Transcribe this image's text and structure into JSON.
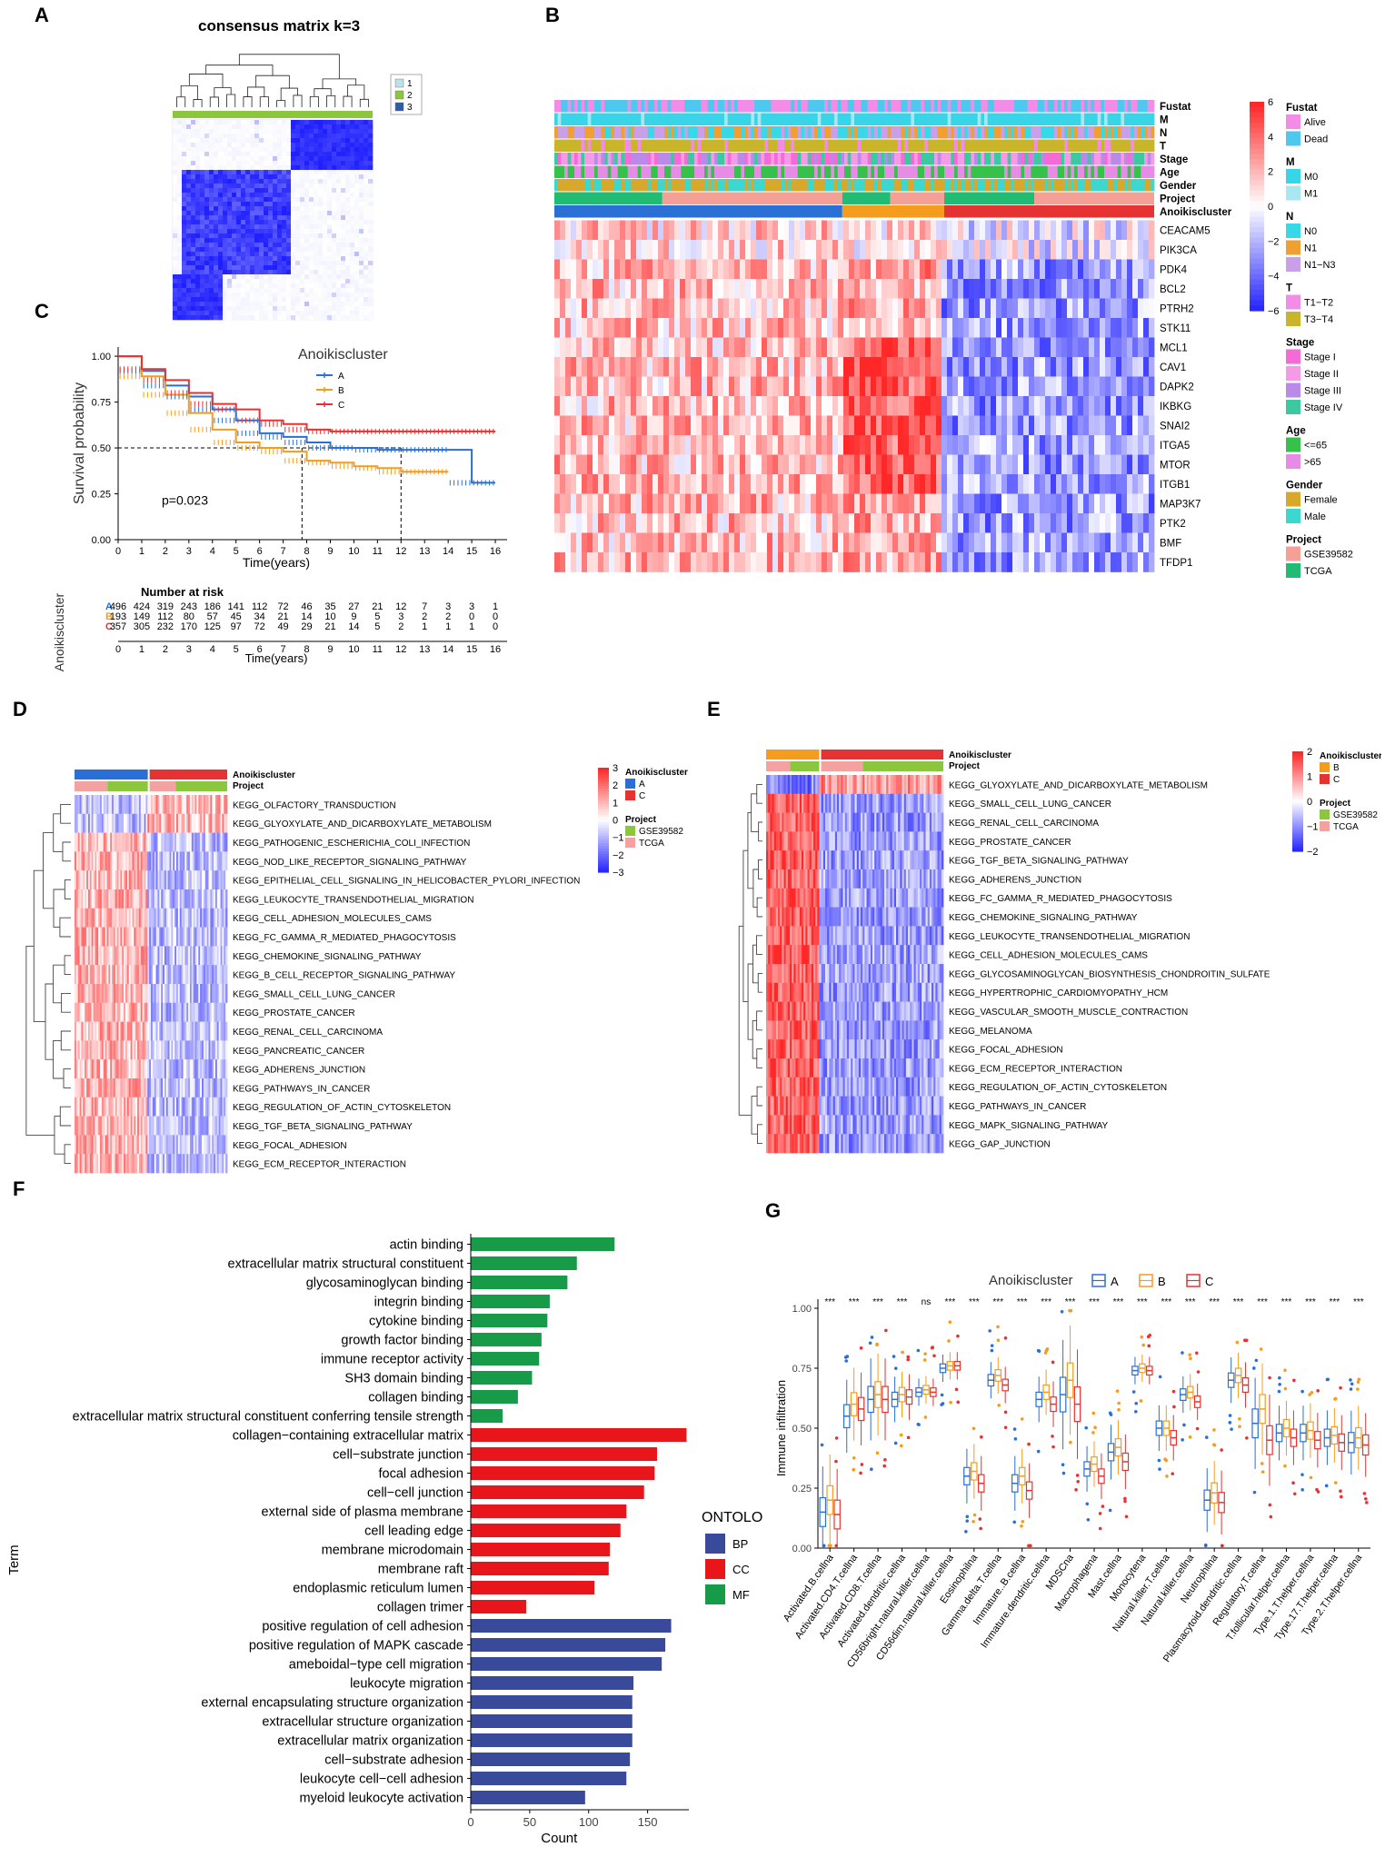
{
  "panel_labels": {
    "a": "A",
    "b": "B",
    "c": "C",
    "d": "D",
    "e": "E",
    "f": "F",
    "g": "G"
  },
  "colors": {
    "clusterA": "#2a6fd6",
    "clusterB": "#f39c1e",
    "clusterC": "#e53232",
    "heatHigh": "#e31b1b",
    "heatLow": "#2222d8",
    "heatMid": "#ffffff",
    "ontBP": "#3a4a9a",
    "ontCC": "#e8161b",
    "ontMF": "#179b48",
    "gse": "#f4a097",
    "tcga": "#22bb73",
    "green": "#8cc63e",
    "pink": "#f2a2a0"
  },
  "chart_data": [
    {
      "id": "A",
      "type": "heatmap",
      "title": "consensus matrix k=3",
      "legend": [
        "1",
        "2",
        "3"
      ],
      "legend_colors": [
        "#b9e3e8",
        "#8cc63e",
        "#2a5fb0"
      ]
    },
    {
      "id": "B",
      "type": "heatmap",
      "annotation_rows": [
        "Fustat",
        "M",
        "N",
        "T",
        "Stage",
        "Age",
        "Gender",
        "Project",
        "Anoikiscluster"
      ],
      "genes": [
        "CEACAM5",
        "PIK3CA",
        "PDK4",
        "BCL2",
        "PTRH2",
        "STK11",
        "MCL1",
        "CAV1",
        "DAPK2",
        "IKBKG",
        "SNAI2",
        "ITGA5",
        "MTOR",
        "ITGB1",
        "MAP3K7",
        "PTK2",
        "BMF",
        "TFDP1"
      ],
      "scale_ticks": [
        "6",
        "4",
        "2",
        "0",
        "−2",
        "−4",
        "−6"
      ],
      "legend_groups": [
        {
          "title": "Fustat",
          "items": [
            {
              "label": "Alive",
              "color": "#f28ce6"
            },
            {
              "label": "Dead",
              "color": "#4fc8f0"
            }
          ]
        },
        {
          "title": "M",
          "items": [
            {
              "label": "M0",
              "color": "#38d4e8"
            },
            {
              "label": "M1",
              "color": "#a8e6f0"
            }
          ]
        },
        {
          "title": "N",
          "items": [
            {
              "label": "N0",
              "color": "#38d8e8"
            },
            {
              "label": "N1",
              "color": "#f0a030"
            },
            {
              "label": "N1−N3",
              "color": "#c9a0e8"
            }
          ]
        },
        {
          "title": "T",
          "items": [
            {
              "label": "T1−T2",
              "color": "#f28ce6"
            },
            {
              "label": "T3−T4",
              "color": "#c9b52a"
            }
          ]
        },
        {
          "title": "Stage",
          "items": [
            {
              "label": "Stage I",
              "color": "#f56ad6"
            },
            {
              "label": "Stage II",
              "color": "#f59ae6"
            },
            {
              "label": "Stage III",
              "color": "#b98ae8"
            },
            {
              "label": "Stage IV",
              "color": "#3cc8a0"
            }
          ]
        },
        {
          "title": "Age",
          "items": [
            {
              "label": "<=65",
              "color": "#36c24a"
            },
            {
              "label": ">65",
              "color": "#e68ce6"
            }
          ]
        },
        {
          "title": "Gender",
          "items": [
            {
              "label": "Female",
              "color": "#d8a82a"
            },
            {
              "label": "Male",
              "color": "#3cd8d0"
            }
          ]
        },
        {
          "title": "Project",
          "items": [
            {
              "label": "GSE39582",
              "color": "#f4a097"
            },
            {
              "label": "TCGA",
              "color": "#22bb73"
            }
          ]
        }
      ]
    },
    {
      "id": "C",
      "type": "line",
      "legend_title": "Anoikiscluster",
      "series": [
        {
          "name": "A",
          "color": "#2a6fd6",
          "points": [
            [
              0,
              1.0
            ],
            [
              1,
              0.92
            ],
            [
              2,
              0.84
            ],
            [
              3,
              0.78
            ],
            [
              4,
              0.71
            ],
            [
              5,
              0.65
            ],
            [
              6,
              0.58
            ],
            [
              7,
              0.56
            ],
            [
              8,
              0.53
            ],
            [
              9,
              0.5
            ],
            [
              10,
              0.5
            ],
            [
              11,
              0.49
            ],
            [
              12,
              0.49
            ],
            [
              13,
              0.49
            ],
            [
              14,
              0.49
            ],
            [
              15,
              0.31
            ],
            [
              16,
              0.31
            ]
          ]
        },
        {
          "name": "B",
          "color": "#f39c1e",
          "points": [
            [
              0,
              1.0
            ],
            [
              1,
              0.89
            ],
            [
              2,
              0.79
            ],
            [
              3,
              0.69
            ],
            [
              4,
              0.6
            ],
            [
              5,
              0.53
            ],
            [
              6,
              0.5
            ],
            [
              7,
              0.48
            ],
            [
              8,
              0.43
            ],
            [
              9,
              0.42
            ],
            [
              10,
              0.4
            ],
            [
              11,
              0.39
            ],
            [
              12,
              0.37
            ],
            [
              13,
              0.37
            ],
            [
              14,
              0.37
            ]
          ]
        },
        {
          "name": "C",
          "color": "#e53232",
          "points": [
            [
              0,
              1.0
            ],
            [
              1,
              0.93
            ],
            [
              2,
              0.87
            ],
            [
              3,
              0.8
            ],
            [
              4,
              0.74
            ],
            [
              5,
              0.71
            ],
            [
              6,
              0.65
            ],
            [
              7,
              0.63
            ],
            [
              8,
              0.6
            ],
            [
              9,
              0.59
            ],
            [
              10,
              0.59
            ],
            [
              11,
              0.59
            ],
            [
              12,
              0.59
            ],
            [
              13,
              0.59
            ],
            [
              14,
              0.59
            ],
            [
              15,
              0.59
            ],
            [
              16,
              0.59
            ]
          ]
        }
      ],
      "pvalue": "p=0.023",
      "ylabel": "Survival probability",
      "xlabel": "Time(years)",
      "xticks": [
        "0",
        "1",
        "2",
        "3",
        "4",
        "5",
        "6",
        "7",
        "8",
        "9",
        "10",
        "11",
        "12",
        "13",
        "14",
        "15",
        "16"
      ],
      "yticks": [
        "0.00",
        "0.25",
        "0.50",
        "0.75",
        "1.00"
      ],
      "median_lines": [
        7.8,
        12
      ],
      "risk_title": "Number at risk",
      "risk_ylabel": "Anoikiscluster",
      "risk_rows": [
        {
          "name": "A",
          "values": [
            "496",
            "424",
            "319",
            "243",
            "186",
            "141",
            "112",
            "72",
            "46",
            "35",
            "27",
            "21",
            "12",
            "7",
            "3",
            "3",
            "1"
          ]
        },
        {
          "name": "B",
          "values": [
            "193",
            "149",
            "112",
            "80",
            "57",
            "45",
            "34",
            "21",
            "14",
            "10",
            "9",
            "5",
            "3",
            "2",
            "2",
            "0",
            "0"
          ]
        },
        {
          "name": "C",
          "values": [
            "357",
            "305",
            "232",
            "170",
            "125",
            "97",
            "72",
            "49",
            "29",
            "21",
            "14",
            "5",
            "2",
            "1",
            "1",
            "1",
            "0"
          ]
        }
      ]
    },
    {
      "id": "D",
      "type": "heatmap",
      "annotation_rows": [
        "Anoikiscluster",
        "Project"
      ],
      "rows": [
        "KEGG_OLFACTORY_TRANSDUCTION",
        "KEGG_GLYOXYLATE_AND_DICARBOXYLATE_METABOLISM",
        "KEGG_PATHOGENIC_ESCHERICHIA_COLI_INFECTION",
        "KEGG_NOD_LIKE_RECEPTOR_SIGNALING_PATHWAY",
        "KEGG_EPITHELIAL_CELL_SIGNALING_IN_HELICOBACTER_PYLORI_INFECTION",
        "KEGG_LEUKOCYTE_TRANSENDOTHELIAL_MIGRATION",
        "KEGG_CELL_ADHESION_MOLECULES_CAMS",
        "KEGG_FC_GAMMA_R_MEDIATED_PHAGOCYTOSIS",
        "KEGG_CHEMOKINE_SIGNALING_PATHWAY",
        "KEGG_B_CELL_RECEPTOR_SIGNALING_PATHWAY",
        "KEGG_SMALL_CELL_LUNG_CANCER",
        "KEGG_PROSTATE_CANCER",
        "KEGG_RENAL_CELL_CARCINOMA",
        "KEGG_PANCREATIC_CANCER",
        "KEGG_ADHERENS_JUNCTION",
        "KEGG_PATHWAYS_IN_CANCER",
        "KEGG_REGULATION_OF_ACTIN_CYTOSKELETON",
        "KEGG_TGF_BETA_SIGNALING_PATHWAY",
        "KEGG_FOCAL_ADHESION",
        "KEGG_ECM_RECEPTOR_INTERACTION"
      ],
      "scale_ticks": [
        "3",
        "2",
        "1",
        "0",
        "−1",
        "−2",
        "−3"
      ],
      "legend_cluster_title": "Anoikiscluster",
      "legend_cluster": [
        {
          "label": "A",
          "color": "#2a6fd6"
        },
        {
          "label": "C",
          "color": "#e53232"
        }
      ],
      "legend_project_title": "Project",
      "legend_project": [
        {
          "label": "GSE39582",
          "color": "#8cc63e"
        },
        {
          "label": "TCGA",
          "color": "#f2a2a0"
        }
      ]
    },
    {
      "id": "E",
      "type": "heatmap",
      "annotation_rows": [
        "Anoikiscluster",
        "Project"
      ],
      "rows": [
        "KEGG_GLYOXYLATE_AND_DICARBOXYLATE_METABOLISM",
        "KEGG_SMALL_CELL_LUNG_CANCER",
        "KEGG_RENAL_CELL_CARCINOMA",
        "KEGG_PROSTATE_CANCER",
        "KEGG_TGF_BETA_SIGNALING_PATHWAY",
        "KEGG_ADHERENS_JUNCTION",
        "KEGG_FC_GAMMA_R_MEDIATED_PHAGOCYTOSIS",
        "KEGG_CHEMOKINE_SIGNALING_PATHWAY",
        "KEGG_LEUKOCYTE_TRANSENDOTHELIAL_MIGRATION",
        "KEGG_CELL_ADHESION_MOLECULES_CAMS",
        "KEGG_GLYCOSAMINOGLYCAN_BIOSYNTHESIS_CHONDROITIN_SULFATE",
        "KEGG_HYPERTROPHIC_CARDIOMYOPATHY_HCM",
        "KEGG_VASCULAR_SMOOTH_MUSCLE_CONTRACTION",
        "KEGG_MELANOMA",
        "KEGG_FOCAL_ADHESION",
        "KEGG_ECM_RECEPTOR_INTERACTION",
        "KEGG_REGULATION_OF_ACTIN_CYTOSKELETON",
        "KEGG_PATHWAYS_IN_CANCER",
        "KEGG_MAPK_SIGNALING_PATHWAY",
        "KEGG_GAP_JUNCTION"
      ],
      "scale_ticks": [
        "2",
        "1",
        "0",
        "−1",
        "−2"
      ],
      "legend_cluster_title": "Anoikiscluster",
      "legend_cluster": [
        {
          "label": "B",
          "color": "#f39c1e"
        },
        {
          "label": "C",
          "color": "#e53232"
        }
      ],
      "legend_project_title": "Project",
      "legend_project": [
        {
          "label": "GSE39582",
          "color": "#8cc63e"
        },
        {
          "label": "TCGA",
          "color": "#f2a2a0"
        }
      ]
    },
    {
      "id": "F",
      "type": "bar",
      "orientation": "horizontal",
      "xlabel": "Count",
      "ylabel": "Term",
      "xlim": [
        0,
        185
      ],
      "xticks": [
        "0",
        "50",
        "100",
        "150"
      ],
      "legend_title": "ONTOLOGY",
      "legend": [
        {
          "label": "BP",
          "color": "#3a4a9a"
        },
        {
          "label": "CC",
          "color": "#e8161b"
        },
        {
          "label": "MF",
          "color": "#179b48"
        }
      ],
      "categories": [
        "actin binding",
        "extracellular matrix structural constituent",
        "glycosaminoglycan binding",
        "integrin binding",
        "cytokine binding",
        "growth factor binding",
        "immune receptor activity",
        "SH3 domain binding",
        "collagen binding",
        "extracellular matrix structural constituent conferring tensile strength",
        "collagen−containing extracellular matrix",
        "cell−substrate junction",
        "focal adhesion",
        "cell−cell junction",
        "external side of plasma membrane",
        "cell leading edge",
        "membrane microdomain",
        "membrane raft",
        "endoplasmic reticulum lumen",
        "collagen trimer",
        "positive regulation of cell adhesion",
        "positive regulation of MAPK cascade",
        "ameboidal−type cell migration",
        "leukocyte migration",
        "external encapsulating structure organization",
        "extracellular structure organization",
        "extracellular matrix organization",
        "cell−substrate adhesion",
        "leukocyte cell−cell adhesion",
        "myeloid leukocyte activation"
      ],
      "values": [
        122,
        90,
        82,
        67,
        65,
        60,
        58,
        52,
        40,
        27,
        183,
        158,
        156,
        147,
        132,
        127,
        118,
        117,
        105,
        47,
        170,
        165,
        162,
        138,
        137,
        137,
        137,
        135,
        132,
        97
      ],
      "groups": [
        "MF",
        "MF",
        "MF",
        "MF",
        "MF",
        "MF",
        "MF",
        "MF",
        "MF",
        "MF",
        "CC",
        "CC",
        "CC",
        "CC",
        "CC",
        "CC",
        "CC",
        "CC",
        "CC",
        "CC",
        "BP",
        "BP",
        "BP",
        "BP",
        "BP",
        "BP",
        "BP",
        "BP",
        "BP",
        "BP"
      ]
    },
    {
      "id": "G",
      "type": "box",
      "legend_title": "Anoikiscluster",
      "legend": [
        {
          "label": "A",
          "color": "#2a6fd6"
        },
        {
          "label": "B",
          "color": "#f39c1e"
        },
        {
          "label": "C",
          "color": "#e53232"
        }
      ],
      "ylabel": "Immune infiltration",
      "ylim": [
        0,
        1
      ],
      "yticks": [
        "0.00",
        "0.25",
        "0.50",
        "0.75",
        "1.00"
      ],
      "categories": [
        "Activated.B.cellna",
        "Activated.CD4.T.cellna",
        "Activated.CD8.T.cellna",
        "Activated.dendritic.cellna",
        "CD56bright.natural.killer.cellna",
        "CD56dim.natural.killer.cellna",
        "Eosinophilna",
        "Gamma.delta.T.cellna",
        "Immature..B.cellna",
        "Immature.dendritic.cellna",
        "MDSCna",
        "Macrophagena",
        "Mast.cellna",
        "Monocytena",
        "Natural.killer.T.cellna",
        "Natural.killer.cellna",
        "Neutrophilna",
        "Plasmacytoid.dendritic.cellna",
        "Regulatory.T.cellna",
        "T.follicular.helper.cellna",
        "Type.1.T.helper.cellna",
        "Type.17.T.helper.cellna",
        "Type.2.T.helper.cellna"
      ],
      "significance": [
        "***",
        "***",
        "***",
        "***",
        "ns",
        "***",
        "***",
        "***",
        "***",
        "***",
        "***",
        "***",
        "***",
        "***",
        "***",
        "***",
        "***",
        "***",
        "***",
        "***",
        "***",
        "***",
        "***"
      ],
      "medians": [
        [
          0.15,
          0.2,
          0.14
        ],
        [
          0.55,
          0.6,
          0.58
        ],
        [
          0.62,
          0.64,
          0.62
        ],
        [
          0.62,
          0.64,
          0.63
        ],
        [
          0.65,
          0.66,
          0.65
        ],
        [
          0.75,
          0.76,
          0.76
        ],
        [
          0.3,
          0.32,
          0.27
        ],
        [
          0.7,
          0.72,
          0.68
        ],
        [
          0.27,
          0.3,
          0.24
        ],
        [
          0.62,
          0.65,
          0.6
        ],
        [
          0.64,
          0.7,
          0.6
        ],
        [
          0.33,
          0.35,
          0.3
        ],
        [
          0.4,
          0.42,
          0.36
        ],
        [
          0.74,
          0.75,
          0.74
        ],
        [
          0.5,
          0.5,
          0.46
        ],
        [
          0.64,
          0.65,
          0.61
        ],
        [
          0.2,
          0.23,
          0.19
        ],
        [
          0.7,
          0.72,
          0.68
        ],
        [
          0.52,
          0.58,
          0.45
        ],
        [
          0.48,
          0.5,
          0.46
        ],
        [
          0.48,
          0.49,
          0.45
        ],
        [
          0.46,
          0.47,
          0.44
        ],
        [
          0.44,
          0.46,
          0.43
        ]
      ],
      "spread": [
        0.1,
        0.08,
        0.09,
        0.05,
        0.03,
        0.03,
        0.06,
        0.04,
        0.06,
        0.05,
        0.12,
        0.05,
        0.06,
        0.03,
        0.05,
        0.04,
        0.07,
        0.05,
        0.1,
        0.06,
        0.06,
        0.06,
        0.07
      ]
    }
  ]
}
